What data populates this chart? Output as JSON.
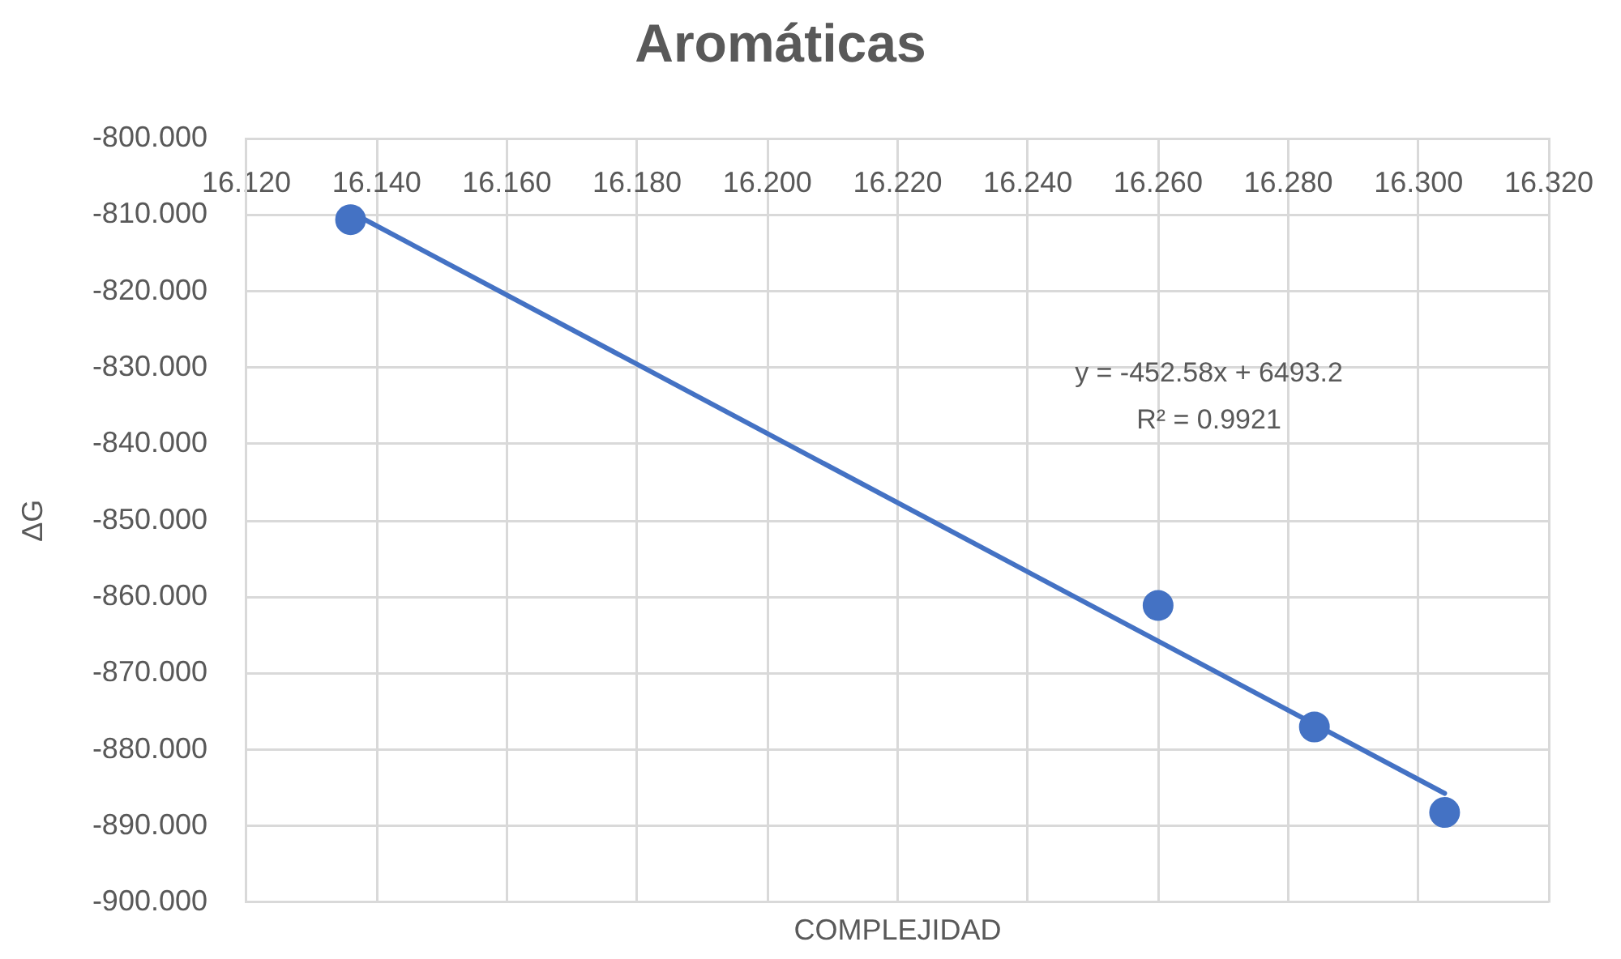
{
  "chart_data": {
    "type": "scatter",
    "title": "Aromáticas",
    "xlabel": "COMPLEJIDAD",
    "ylabel": "ΔG",
    "x": [
      16.136,
      16.26,
      16.284,
      16.304
    ],
    "series": [
      {
        "type": "scatter",
        "color": "#4472c4",
        "values": [
          -810.6,
          -861.1,
          -877.0,
          -888.2
        ]
      },
      {
        "type": "line",
        "color": "#4472c4",
        "marker": "none",
        "x": [
          16.136,
          16.304
        ],
        "values": [
          -809.6,
          -885.7
        ]
      }
    ],
    "xlim": [
      16.12,
      16.32
    ],
    "xticks": [
      {
        "value": 16.12,
        "label": "16.120"
      },
      {
        "value": 16.14,
        "label": "16.140"
      },
      {
        "value": 16.16,
        "label": "16.160"
      },
      {
        "value": 16.18,
        "label": "16.180"
      },
      {
        "value": 16.2,
        "label": "16.200"
      },
      {
        "value": 16.22,
        "label": "16.220"
      },
      {
        "value": 16.24,
        "label": "16.240"
      },
      {
        "value": 16.26,
        "label": "16.260"
      },
      {
        "value": 16.28,
        "label": "16.280"
      },
      {
        "value": 16.3,
        "label": "16.300"
      },
      {
        "value": 16.32,
        "label": "16.320"
      }
    ],
    "ylim": [
      -900,
      -800
    ],
    "yticks": [
      {
        "value": -900,
        "label": "-900.000"
      },
      {
        "value": -890,
        "label": "-890.000"
      },
      {
        "value": -880,
        "label": "-880.000"
      },
      {
        "value": -870,
        "label": "-870.000"
      },
      {
        "value": -860,
        "label": "-860.000"
      },
      {
        "value": -850,
        "label": "-850.000"
      },
      {
        "value": -840,
        "label": "-840.000"
      },
      {
        "value": -830,
        "label": "-830.000"
      },
      {
        "value": -820,
        "label": "-820.000"
      },
      {
        "value": -810,
        "label": "-810.000"
      },
      {
        "value": -800,
        "label": "-800.000"
      }
    ],
    "grid": true,
    "marker": "circle",
    "line_style": "solid",
    "annotations": [
      "y = -452.58x + 6493.2",
      "R² = 0.9921"
    ]
  }
}
